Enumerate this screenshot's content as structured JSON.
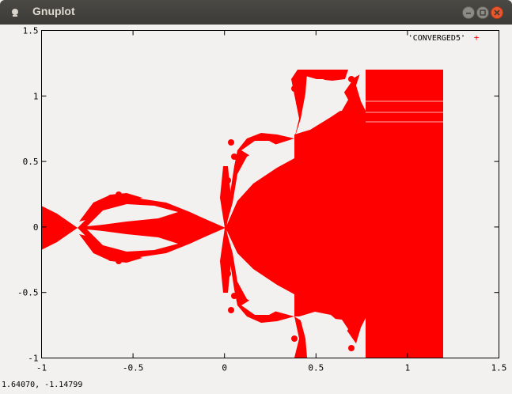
{
  "window": {
    "title": "Gnuplot",
    "accent_close": "#e8572c",
    "titlebar_color": "#3c3b37"
  },
  "status_bar": {
    "coordinates": "1.64070, -1.14799"
  },
  "chart_data": {
    "type": "scatter",
    "title": "",
    "xlabel": "",
    "ylabel": "",
    "xlim": [
      -1,
      1.5
    ],
    "ylim": [
      -1,
      1.5
    ],
    "x_ticks": [
      "-1",
      "-0.5",
      "0",
      "0.5",
      "1",
      "1.5"
    ],
    "y_ticks": [
      "1.5",
      "1",
      "0.5",
      "0",
      "-0.5",
      "-1"
    ],
    "x_tick_values": [
      -1,
      -0.5,
      0,
      0.5,
      1,
      1.5
    ],
    "y_tick_values": [
      1.5,
      1,
      0.5,
      0,
      -0.5,
      -1
    ],
    "grid": false,
    "legend_position": "top-right",
    "series": [
      {
        "name": "'CONVERGED5'",
        "color": "#ff0000",
        "marker": "+",
        "filled_region": {
          "x_min": 0.4,
          "x_max": 1.2,
          "y_min": -1,
          "y_max": 1.2
        }
      }
    ]
  }
}
